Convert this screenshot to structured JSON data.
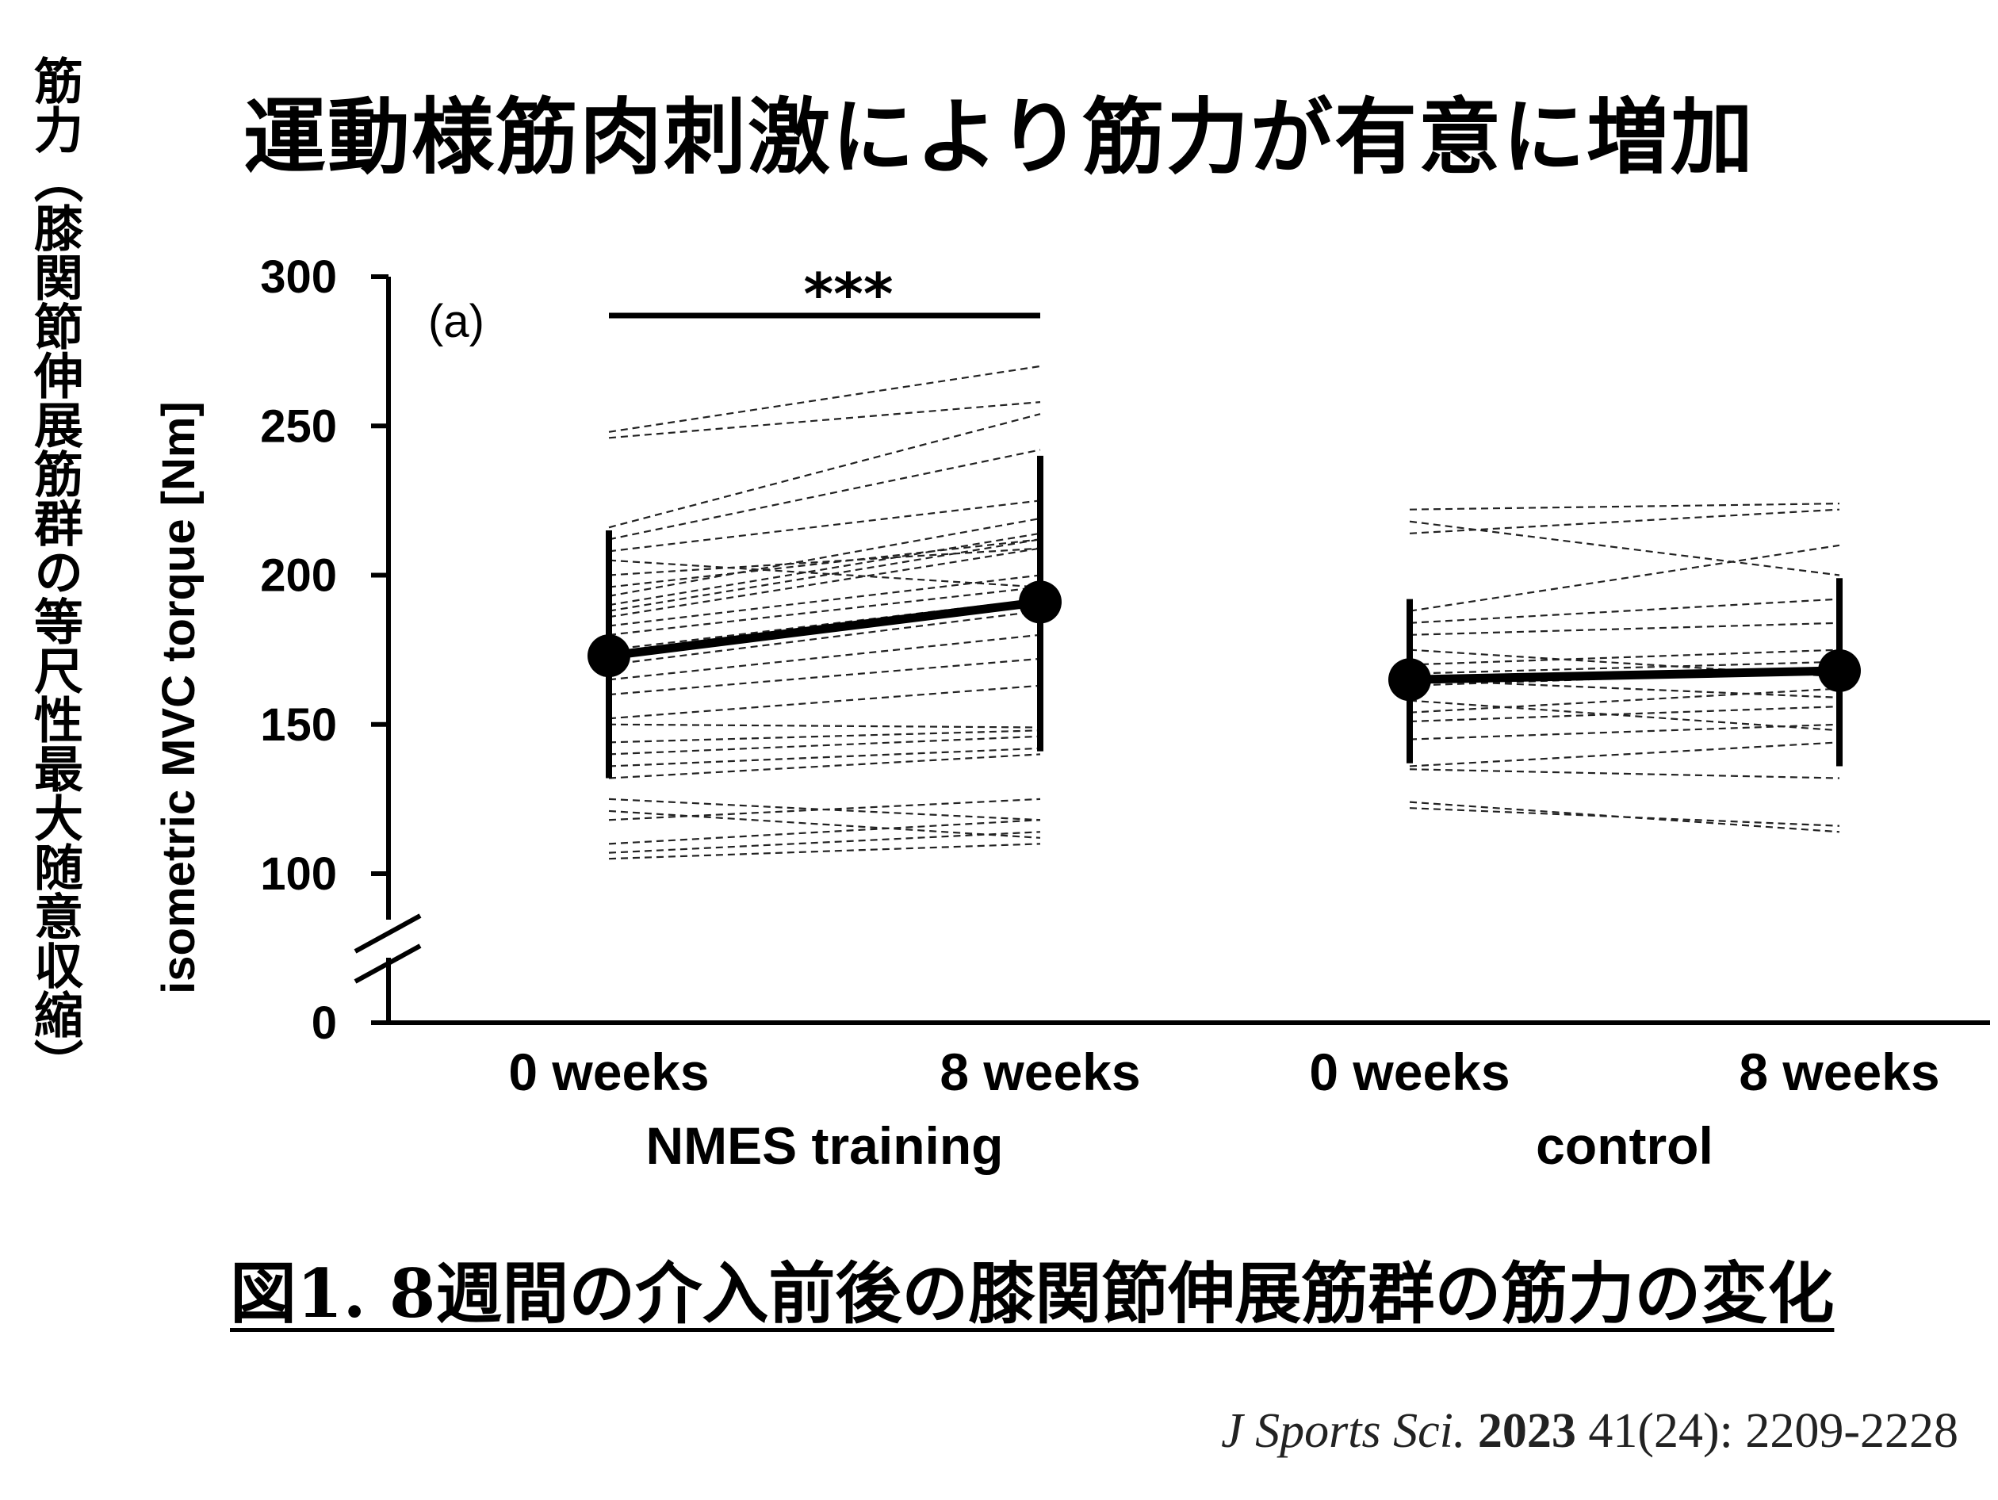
{
  "title": "運動様筋肉刺激により筋力が有意に増加",
  "side_label": {
    "main": "筋力",
    "detail": "（膝関節伸展筋群の等尺性最大随意収縮）"
  },
  "caption": "図1. 8週間の介入前後の膝関節伸展筋群の筋力の変化",
  "citation": {
    "journal": "J Sports Sci.",
    "year": "2023",
    "rest": "41(24): 2209-2228"
  },
  "chart_data": {
    "type": "line",
    "panel_label": "(a)",
    "ylabel": "isometric MVC torque [Nm]",
    "yticks": [
      0,
      100,
      150,
      200,
      250,
      300
    ],
    "ylim": [
      100,
      300
    ],
    "axis_break": true,
    "categories": [
      "0 weeks",
      "8 weeks",
      "0 weeks",
      "8 weeks"
    ],
    "groups": [
      {
        "name": "NMES training",
        "significance": "***",
        "mean": [
          173,
          191
        ],
        "sd_lower": [
          132,
          141
        ],
        "sd_upper": [
          215,
          240
        ],
        "individuals": [
          [
            105,
            110
          ],
          [
            107,
            114
          ],
          [
            110,
            118
          ],
          [
            118,
            125
          ],
          [
            121,
            112
          ],
          [
            125,
            118
          ],
          [
            132,
            140
          ],
          [
            136,
            142
          ],
          [
            140,
            146
          ],
          [
            144,
            148
          ],
          [
            150,
            149
          ],
          [
            152,
            163
          ],
          [
            160,
            172
          ],
          [
            165,
            180
          ],
          [
            170,
            188
          ],
          [
            175,
            192
          ],
          [
            180,
            196
          ],
          [
            183,
            200
          ],
          [
            186,
            209
          ],
          [
            188,
            212
          ],
          [
            190,
            214
          ],
          [
            193,
            219
          ],
          [
            196,
            212
          ],
          [
            200,
            209
          ],
          [
            205,
            196
          ],
          [
            208,
            225
          ],
          [
            212,
            242
          ],
          [
            216,
            254
          ],
          [
            246,
            258
          ],
          [
            248,
            270
          ]
        ]
      },
      {
        "name": "control",
        "mean": [
          165,
          168
        ],
        "sd_lower": [
          137,
          136
        ],
        "sd_upper": [
          192,
          199
        ],
        "individuals": [
          [
            122,
            116
          ],
          [
            124,
            114
          ],
          [
            135,
            132
          ],
          [
            136,
            144
          ],
          [
            145,
            150
          ],
          [
            151,
            156
          ],
          [
            154,
            162
          ],
          [
            158,
            148
          ],
          [
            163,
            168
          ],
          [
            165,
            159
          ],
          [
            167,
            171
          ],
          [
            170,
            175
          ],
          [
            175,
            166
          ],
          [
            180,
            184
          ],
          [
            184,
            192
          ],
          [
            188,
            210
          ],
          [
            214,
            222
          ],
          [
            218,
            200
          ],
          [
            222,
            224
          ]
        ]
      }
    ]
  }
}
